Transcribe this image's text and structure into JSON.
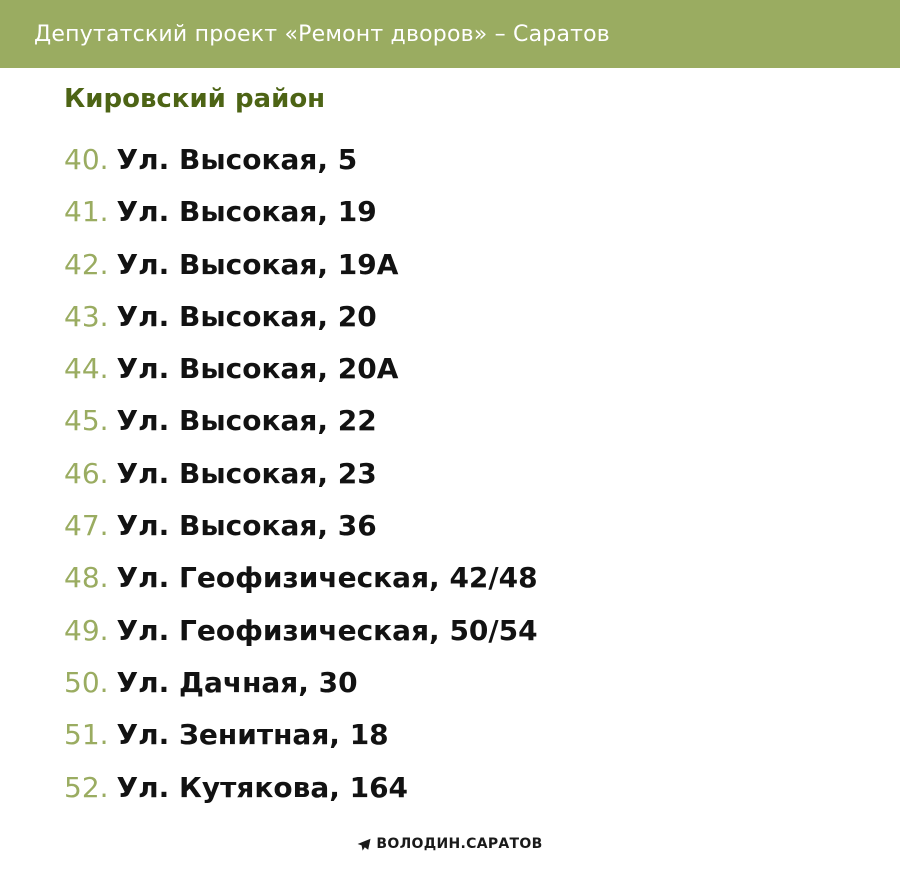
{
  "header": {
    "title": "Депутатский проект «Ремонт дворов» – Саратов"
  },
  "colors": {
    "header_bg": "#9aac61",
    "district_title": "#4d6415",
    "number": "#9aac61",
    "address": "#121212"
  },
  "district": {
    "title": "Кировский район"
  },
  "items": [
    {
      "number": "40.",
      "address": "Ул. Высокая, 5"
    },
    {
      "number": "41.",
      "address": "Ул. Высокая, 19"
    },
    {
      "number": "42.",
      "address": "Ул. Высокая, 19А"
    },
    {
      "number": "43.",
      "address": "Ул. Высокая, 20"
    },
    {
      "number": "44.",
      "address": "Ул. Высокая, 20А"
    },
    {
      "number": "45.",
      "address": "Ул. Высокая, 22"
    },
    {
      "number": "46.",
      "address": "Ул. Высокая, 23"
    },
    {
      "number": "47.",
      "address": "Ул. Высокая, 36"
    },
    {
      "number": "48.",
      "address": "Ул. Геофизическая, 42/48"
    },
    {
      "number": "49.",
      "address": "Ул. Геофизическая, 50/54"
    },
    {
      "number": "50.",
      "address": "Ул. Дачная, 30"
    },
    {
      "number": "51.",
      "address": "Ул. Зенитная, 18"
    },
    {
      "number": "52.",
      "address": "Ул. Кутякова, 164"
    }
  ],
  "footer": {
    "icon": "telegram-send-icon",
    "label": "ВОЛОДИН.САРАТОВ"
  }
}
